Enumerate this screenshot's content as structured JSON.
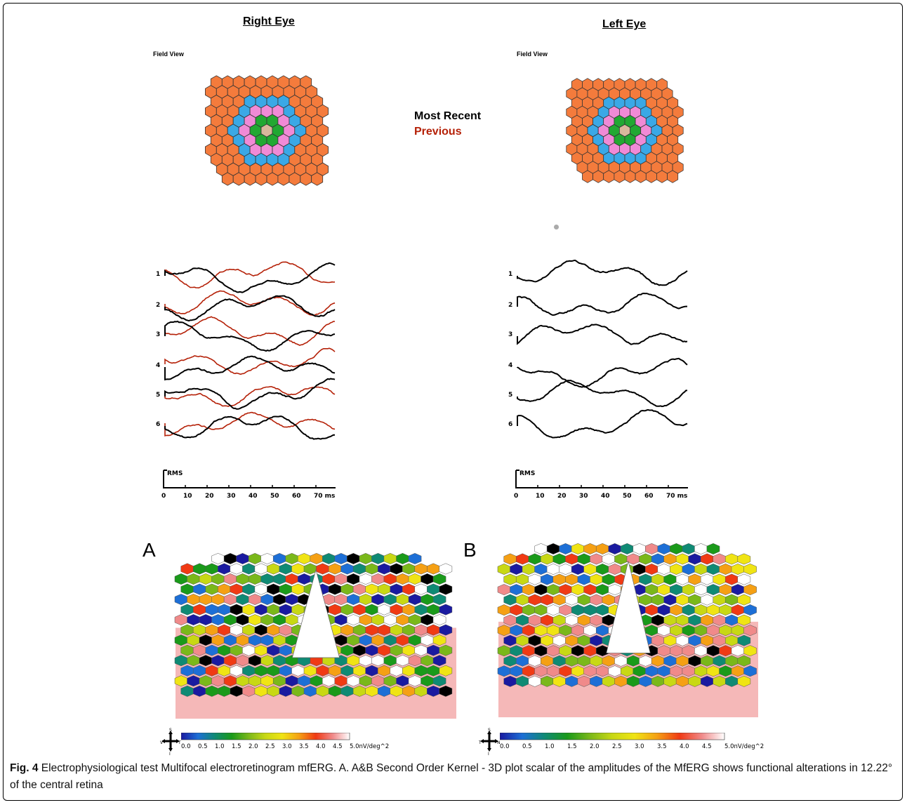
{
  "right_eye": {
    "title": "Right Eye",
    "field_view_label": "Field View",
    "trace_labels": [
      "1",
      "2",
      "3",
      "4",
      "5",
      "6"
    ],
    "rms_label": "RMS",
    "axis_ticks": [
      "0",
      "10",
      "20",
      "30",
      "40",
      "50",
      "60",
      "70 ms"
    ]
  },
  "left_eye": {
    "title": "Left Eye",
    "field_view_label": "Field View",
    "trace_labels": [
      "1",
      "2",
      "3",
      "4",
      "5",
      "6"
    ],
    "rms_label": "RMS",
    "axis_ticks": [
      "0",
      "10",
      "20",
      "30",
      "40",
      "50",
      "60",
      "70 ms"
    ]
  },
  "legend": {
    "most_recent": "Most Recent",
    "previous": "Previous",
    "most_recent_color": "#000000",
    "previous_color": "#b52108"
  },
  "ring_colors": [
    "#d9b89c",
    "#22a832",
    "#f08ad6",
    "#3aa8e6",
    "#f47b3c"
  ],
  "panel_a": {
    "letter": "A",
    "orientation": {
      "top": "S",
      "left": "V",
      "right": "T",
      "bottom": "I"
    },
    "scale_ticks": [
      "0.0",
      "0.5",
      "1.0",
      "1.5",
      "2.0",
      "2.5",
      "3.0",
      "3.5",
      "4.0",
      "4.5",
      "5.0nV/deg^2"
    ]
  },
  "panel_b": {
    "letter": "B",
    "orientation": {
      "top": "S",
      "left": "T",
      "right": "N",
      "bottom": "I"
    },
    "scale_ticks": [
      "0.0",
      "0.5",
      "1.0",
      "1.5",
      "2.0",
      "2.5",
      "3.0",
      "3.5",
      "4.0",
      "4.5",
      "5.0nV/deg^2"
    ]
  },
  "scalar_colors": [
    "#1a1aa0",
    "#1d6fd6",
    "#0f8a74",
    "#1a9a1a",
    "#7ab81a",
    "#c8d814",
    "#f0e414",
    "#f5a014",
    "#f03a14",
    "#f08a8a",
    "#ffffff",
    "#000000",
    "#f5b8b8"
  ],
  "caption": {
    "label": "Fig. 4",
    "text": " Electrophysiological test Multifocal electroretinogram mfERG. A. A&B Second Order Kernel - 3D plot scalar of the amplitudes of the MfERG shows functional alterations in 12.22° of the central retina"
  }
}
